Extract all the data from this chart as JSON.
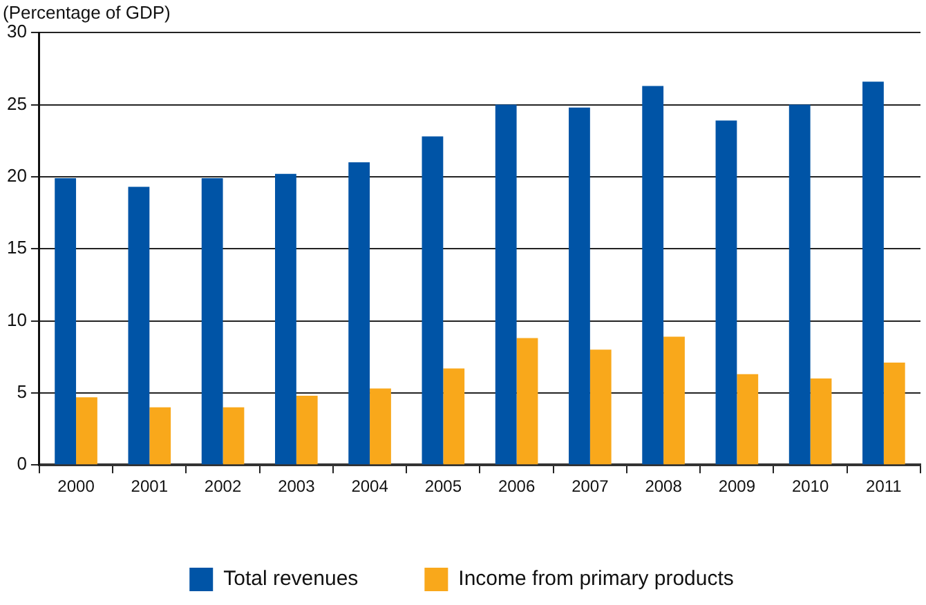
{
  "chart_data": {
    "type": "bar",
    "subtitle": "(Percentage of GDP)",
    "categories": [
      "2000",
      "2001",
      "2002",
      "2003",
      "2004",
      "2005",
      "2006",
      "2007",
      "2008",
      "2009",
      "2010",
      "2011"
    ],
    "series": [
      {
        "name": "Total revenues",
        "color": "#0054a6",
        "values": [
          19.9,
          19.3,
          19.9,
          20.2,
          21.0,
          22.8,
          25.0,
          24.8,
          26.3,
          23.9,
          25.0,
          26.6
        ]
      },
      {
        "name": "Income from primary products",
        "color": "#f9a81b",
        "values": [
          4.7,
          4.0,
          4.0,
          4.8,
          5.3,
          6.7,
          8.8,
          8.0,
          8.9,
          6.3,
          6.0,
          7.1
        ]
      }
    ],
    "ylim": [
      0,
      30
    ],
    "yticks": [
      0,
      5,
      10,
      15,
      20,
      25,
      30
    ],
    "grid": "y",
    "legend": "bottom"
  }
}
